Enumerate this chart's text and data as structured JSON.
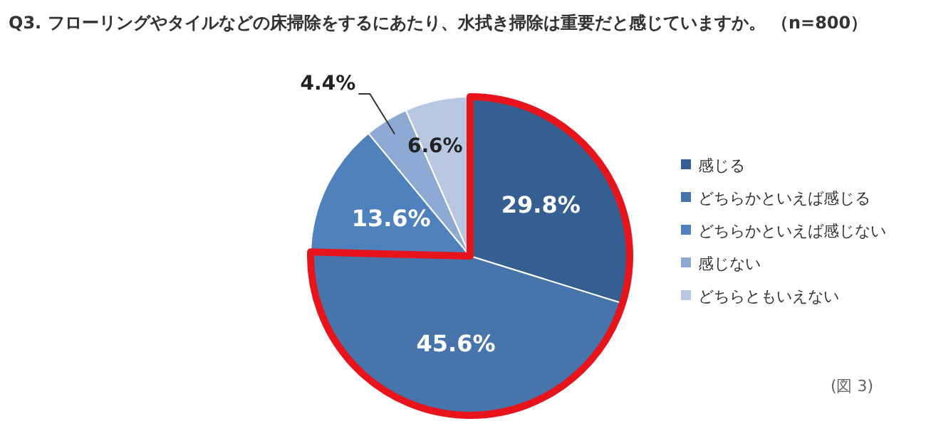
{
  "chart_data": {
    "type": "pie",
    "title": "Q3. フローリングやタイルなどの床掃除をするにあたり、水拭き掃除は重要だと感じていますか。 （n=800）",
    "categories": [
      "感じる",
      "どちらかといえば感じる",
      "どちらかといえば感じない",
      "感じない",
      "どちらともいえない"
    ],
    "values": [
      29.8,
      45.6,
      13.6,
      4.4,
      6.6
    ],
    "value_labels": [
      "29.8%",
      "45.6%",
      "13.6%",
      "4.4%",
      "6.6%"
    ],
    "colors": [
      "#365f91",
      "#4674ab",
      "#4f81bd",
      "#8ea9d3",
      "#b8c7e2"
    ],
    "legend": "right",
    "annotations": [
      "(図 3)"
    ]
  }
}
